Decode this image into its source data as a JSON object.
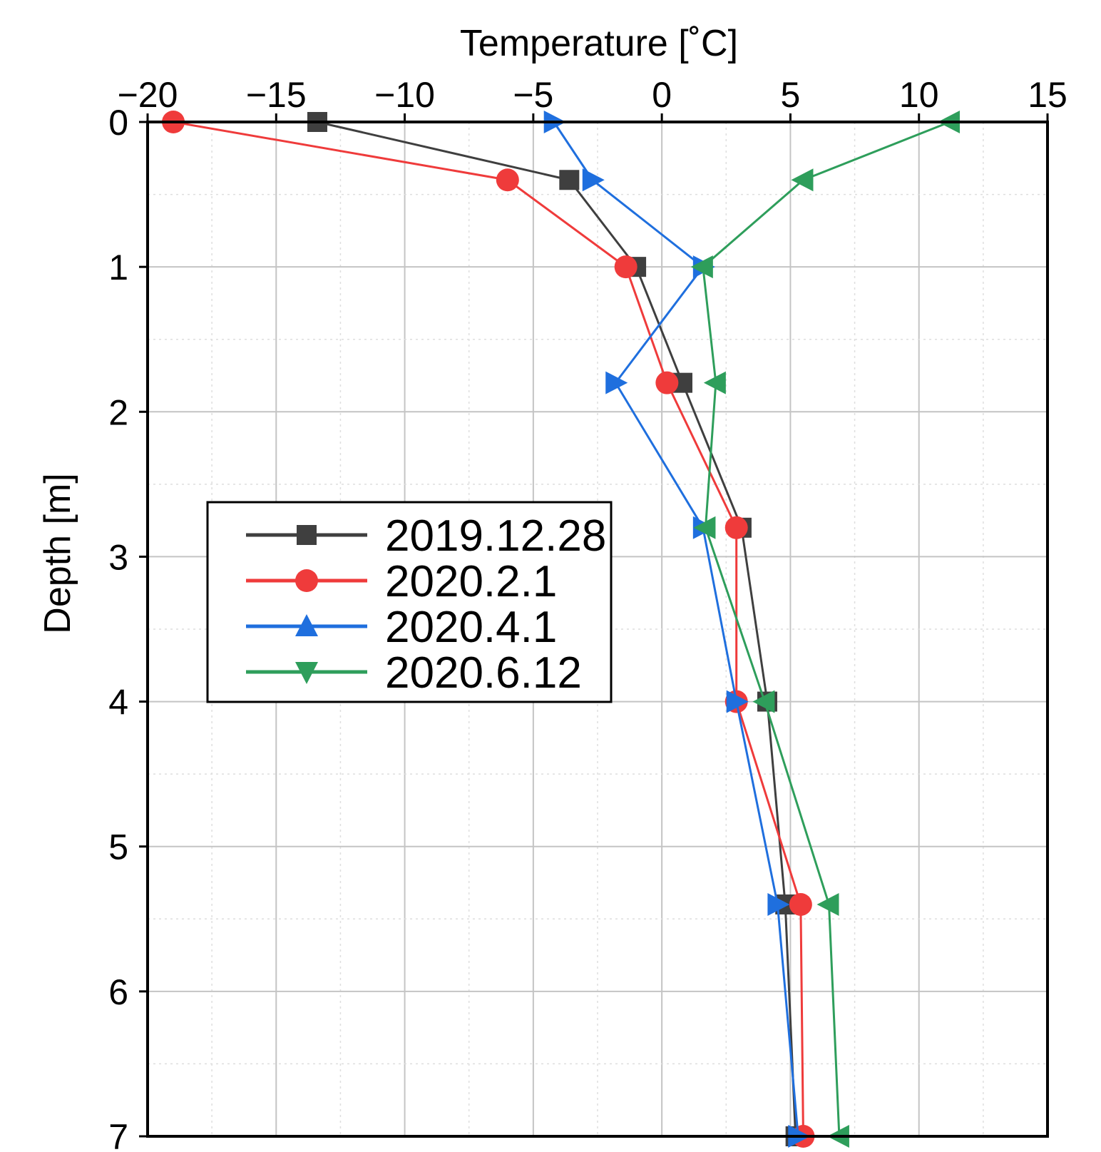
{
  "chart_data": {
    "type": "line",
    "orientation": "vertical-profile",
    "title": "",
    "xlabel": "Temperature [˚C]",
    "ylabel": "Depth [m]",
    "xlim": [
      -20,
      15
    ],
    "ylim": [
      0,
      7
    ],
    "x_inverted": false,
    "y_inverted": true,
    "x_axis_position": "top",
    "xticks": [
      -20,
      -15,
      -10,
      -5,
      0,
      5,
      10,
      15
    ],
    "xtick_labels": [
      "−20",
      "−15",
      "−10",
      "−5",
      "0",
      "5",
      "10",
      "15"
    ],
    "yticks": [
      0,
      1,
      2,
      3,
      4,
      5,
      6,
      7
    ],
    "ytick_labels": [
      "0",
      "1",
      "2",
      "3",
      "4",
      "5",
      "6",
      "7"
    ],
    "grid": true,
    "legend_position": "center-left",
    "series": [
      {
        "name": "2019.12.28",
        "color": "#3f3f3f",
        "marker": "square",
        "points": [
          {
            "temp": -13.4,
            "depth": 0.0
          },
          {
            "temp": -3.6,
            "depth": 0.4
          },
          {
            "temp": -1.0,
            "depth": 1.0
          },
          {
            "temp": 0.8,
            "depth": 1.8
          },
          {
            "temp": 3.1,
            "depth": 2.8
          },
          {
            "temp": 4.1,
            "depth": 4.0
          },
          {
            "temp": 4.8,
            "depth": 5.4
          },
          {
            "temp": 5.2,
            "depth": 7.0
          }
        ]
      },
      {
        "name": "2020.2.1",
        "color": "#ef3b3b",
        "marker": "circle",
        "points": [
          {
            "temp": -19.0,
            "depth": 0.0
          },
          {
            "temp": -6.0,
            "depth": 0.4
          },
          {
            "temp": -1.4,
            "depth": 1.0
          },
          {
            "temp": 0.2,
            "depth": 1.8
          },
          {
            "temp": 2.9,
            "depth": 2.8
          },
          {
            "temp": 2.9,
            "depth": 4.0
          },
          {
            "temp": 5.4,
            "depth": 5.4
          },
          {
            "temp": 5.5,
            "depth": 7.0
          }
        ]
      },
      {
        "name": "2020.4.1",
        "color": "#1f6fde",
        "marker": "triangle-up",
        "points": [
          {
            "temp": -4.2,
            "depth": 0.0
          },
          {
            "temp": -2.7,
            "depth": 0.4
          },
          {
            "temp": 1.6,
            "depth": 1.0
          },
          {
            "temp": -1.8,
            "depth": 1.8
          },
          {
            "temp": 1.6,
            "depth": 2.8
          },
          {
            "temp": 2.9,
            "depth": 4.0
          },
          {
            "temp": 4.5,
            "depth": 5.4
          },
          {
            "temp": 5.3,
            "depth": 7.0
          }
        ]
      },
      {
        "name": "2020.6.12",
        "color": "#2e9e5b",
        "marker": "triangle-down",
        "points": [
          {
            "temp": 11.2,
            "depth": 0.0
          },
          {
            "temp": 5.5,
            "depth": 0.4
          },
          {
            "temp": 1.6,
            "depth": 1.0
          },
          {
            "temp": 2.1,
            "depth": 1.8
          },
          {
            "temp": 1.7,
            "depth": 2.8
          },
          {
            "temp": 4.0,
            "depth": 4.0
          },
          {
            "temp": 6.5,
            "depth": 5.4
          },
          {
            "temp": 6.9,
            "depth": 7.0
          }
        ]
      }
    ]
  }
}
